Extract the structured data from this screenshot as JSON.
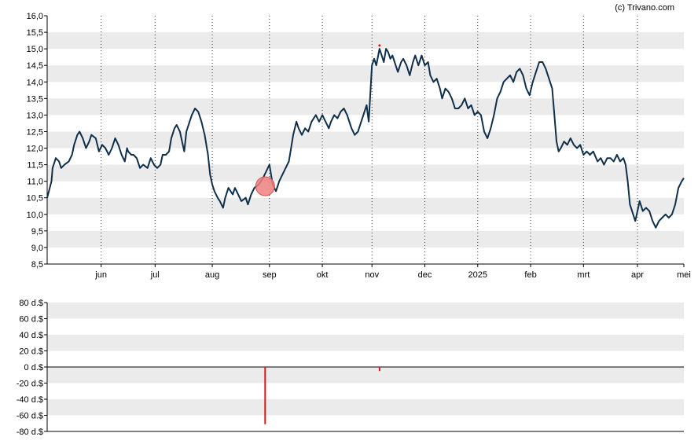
{
  "credit": "(c) Trivano.com",
  "colors": {
    "line": "#0f2f4a",
    "band": "#ebebeb",
    "bar": "#e0141e",
    "marker": "#f08080"
  },
  "chart_data": [
    {
      "type": "line",
      "title": "",
      "ylim": [
        8.5,
        16.0
      ],
      "y_ticks": [
        "8,5",
        "9,0",
        "9,5",
        "10,0",
        "10,5",
        "11,0",
        "11,5",
        "12,0",
        "12,5",
        "13,0",
        "13,5",
        "14,0",
        "14,5",
        "15,0",
        "15,5",
        "16,0"
      ],
      "x_ticks": [
        "jun",
        "jul",
        "aug",
        "sep",
        "okt",
        "nov",
        "dec",
        "2025",
        "feb",
        "mrt",
        "apr",
        "mei"
      ],
      "x_range": [
        0,
        59
      ],
      "x_tick_positions": [
        5,
        10,
        15.3,
        20.6,
        25.5,
        30.1,
        35,
        39.9,
        44.8,
        49.7,
        54.7,
        59
      ],
      "grid": "dotted vertical at month ticks, alternating horizontal bands",
      "markers": [
        {
          "x": 20.2,
          "y": 10.85,
          "kind": "highlight-circle"
        },
        {
          "x": 30.8,
          "y": 15.1,
          "kind": "dot"
        }
      ],
      "series": [
        {
          "values": [
            [
              0,
              10.5
            ],
            [
              0.4,
              11.0
            ],
            [
              0.5,
              11.4
            ],
            [
              0.8,
              11.7
            ],
            [
              1.1,
              11.6
            ],
            [
              1.3,
              11.4
            ],
            [
              1.6,
              11.5
            ],
            [
              2.0,
              11.6
            ],
            [
              2.3,
              11.8
            ],
            [
              2.5,
              12.1
            ],
            [
              2.8,
              12.4
            ],
            [
              3.0,
              12.5
            ],
            [
              3.3,
              12.3
            ],
            [
              3.6,
              12.0
            ],
            [
              3.9,
              12.2
            ],
            [
              4.1,
              12.4
            ],
            [
              4.5,
              12.3
            ],
            [
              4.8,
              11.9
            ],
            [
              5.1,
              12.1
            ],
            [
              5.4,
              12.0
            ],
            [
              5.7,
              11.8
            ],
            [
              6.0,
              12.0
            ],
            [
              6.3,
              12.3
            ],
            [
              6.6,
              12.1
            ],
            [
              6.9,
              11.8
            ],
            [
              7.2,
              11.6
            ],
            [
              7.4,
              12.0
            ],
            [
              7.5,
              11.9
            ],
            [
              7.8,
              11.8
            ],
            [
              8.0,
              11.8
            ],
            [
              8.3,
              11.7
            ],
            [
              8.6,
              11.4
            ],
            [
              8.9,
              11.5
            ],
            [
              9.3,
              11.4
            ],
            [
              9.6,
              11.7
            ],
            [
              9.9,
              11.5
            ],
            [
              10.2,
              11.4
            ],
            [
              10.5,
              11.5
            ],
            [
              10.7,
              11.8
            ],
            [
              11.0,
              11.8
            ],
            [
              11.3,
              11.9
            ],
            [
              11.5,
              12.3
            ],
            [
              11.8,
              12.6
            ],
            [
              12.0,
              12.7
            ],
            [
              12.3,
              12.5
            ],
            [
              12.5,
              12.2
            ],
            [
              12.7,
              11.9
            ],
            [
              12.9,
              12.5
            ],
            [
              13.2,
              12.8
            ],
            [
              13.4,
              13.0
            ],
            [
              13.7,
              13.2
            ],
            [
              14.0,
              13.1
            ],
            [
              14.3,
              12.8
            ],
            [
              14.6,
              12.4
            ],
            [
              14.9,
              11.8
            ],
            [
              15.1,
              11.2
            ],
            [
              15.3,
              10.9
            ],
            [
              15.5,
              10.7
            ],
            [
              15.8,
              10.5
            ],
            [
              16.0,
              10.4
            ],
            [
              16.3,
              10.2
            ],
            [
              16.5,
              10.5
            ],
            [
              16.8,
              10.8
            ],
            [
              17.2,
              10.6
            ],
            [
              17.4,
              10.8
            ],
            [
              17.7,
              10.6
            ],
            [
              18.0,
              10.4
            ],
            [
              18.4,
              10.5
            ],
            [
              18.6,
              10.3
            ],
            [
              18.9,
              10.6
            ],
            [
              19.2,
              10.8
            ],
            [
              19.6,
              10.9
            ],
            [
              20.0,
              11.1
            ],
            [
              20.3,
              11.3
            ],
            [
              20.6,
              11.5
            ],
            [
              20.9,
              10.9
            ],
            [
              21.2,
              10.7
            ],
            [
              21.5,
              11.0
            ],
            [
              21.8,
              11.2
            ],
            [
              22.1,
              11.4
            ],
            [
              22.4,
              11.6
            ],
            [
              22.6,
              12.0
            ],
            [
              22.8,
              12.4
            ],
            [
              23.1,
              12.8
            ],
            [
              23.3,
              12.6
            ],
            [
              23.6,
              12.4
            ],
            [
              23.9,
              12.6
            ],
            [
              24.2,
              12.5
            ],
            [
              24.5,
              12.8
            ],
            [
              24.9,
              13.0
            ],
            [
              25.2,
              12.8
            ],
            [
              25.5,
              13.0
            ],
            [
              25.8,
              12.8
            ],
            [
              26.1,
              12.6
            ],
            [
              26.3,
              12.8
            ],
            [
              26.6,
              13.0
            ],
            [
              26.9,
              12.9
            ],
            [
              27.2,
              13.1
            ],
            [
              27.5,
              13.2
            ],
            [
              27.8,
              13.0
            ],
            [
              28.0,
              12.8
            ],
            [
              28.2,
              12.6
            ],
            [
              28.5,
              12.4
            ],
            [
              28.8,
              12.5
            ],
            [
              29.1,
              12.8
            ],
            [
              29.3,
              13.0
            ],
            [
              29.6,
              13.3
            ],
            [
              29.8,
              12.8
            ],
            [
              30.1,
              14.5
            ],
            [
              30.3,
              14.7
            ],
            [
              30.5,
              14.5
            ],
            [
              30.8,
              15.0
            ],
            [
              31.0,
              14.8
            ],
            [
              31.2,
              14.6
            ],
            [
              31.4,
              15.0
            ],
            [
              31.6,
              14.9
            ],
            [
              31.8,
              14.7
            ],
            [
              32.0,
              14.8
            ],
            [
              32.3,
              14.5
            ],
            [
              32.5,
              14.3
            ],
            [
              32.8,
              14.6
            ],
            [
              33.0,
              14.7
            ],
            [
              33.3,
              14.5
            ],
            [
              33.6,
              14.2
            ],
            [
              33.9,
              14.6
            ],
            [
              34.1,
              14.8
            ],
            [
              34.4,
              14.5
            ],
            [
              34.7,
              14.8
            ],
            [
              35.0,
              14.5
            ],
            [
              35.3,
              14.6
            ],
            [
              35.5,
              14.2
            ],
            [
              35.8,
              14.0
            ],
            [
              36.1,
              14.1
            ],
            [
              36.4,
              13.8
            ],
            [
              36.6,
              13.5
            ],
            [
              36.9,
              13.8
            ],
            [
              37.2,
              13.7
            ],
            [
              37.5,
              13.5
            ],
            [
              37.8,
              13.2
            ],
            [
              38.1,
              13.2
            ],
            [
              38.4,
              13.3
            ],
            [
              38.7,
              13.5
            ],
            [
              39.0,
              13.2
            ],
            [
              39.3,
              13.3
            ],
            [
              39.6,
              13.0
            ],
            [
              39.9,
              13.1
            ],
            [
              40.2,
              13.0
            ],
            [
              40.5,
              12.5
            ],
            [
              40.8,
              12.3
            ],
            [
              41.1,
              12.6
            ],
            [
              41.4,
              13.0
            ],
            [
              41.7,
              13.5
            ],
            [
              42.0,
              13.7
            ],
            [
              42.3,
              14.0
            ],
            [
              42.6,
              14.1
            ],
            [
              42.9,
              14.2
            ],
            [
              43.2,
              14.0
            ],
            [
              43.5,
              14.3
            ],
            [
              43.8,
              14.4
            ],
            [
              44.1,
              14.2
            ],
            [
              44.4,
              13.8
            ],
            [
              44.7,
              13.6
            ],
            [
              45.0,
              14.0
            ],
            [
              45.3,
              14.3
            ],
            [
              45.6,
              14.6
            ],
            [
              45.9,
              14.6
            ],
            [
              46.2,
              14.4
            ],
            [
              46.5,
              14.1
            ],
            [
              46.8,
              13.8
            ],
            [
              47.0,
              13.0
            ],
            [
              47.2,
              12.2
            ],
            [
              47.4,
              11.9
            ],
            [
              47.6,
              12.0
            ],
            [
              47.9,
              12.2
            ],
            [
              48.2,
              12.1
            ],
            [
              48.5,
              12.3
            ],
            [
              48.8,
              12.1
            ],
            [
              49.1,
              12.0
            ],
            [
              49.4,
              12.1
            ],
            [
              49.7,
              11.8
            ],
            [
              50.0,
              11.9
            ],
            [
              50.3,
              11.8
            ],
            [
              50.6,
              11.9
            ],
            [
              51.0,
              11.6
            ],
            [
              51.3,
              11.7
            ],
            [
              51.6,
              11.5
            ],
            [
              51.9,
              11.7
            ],
            [
              52.2,
              11.7
            ],
            [
              52.5,
              11.6
            ],
            [
              52.8,
              11.8
            ],
            [
              53.1,
              11.6
            ],
            [
              53.4,
              11.7
            ],
            [
              53.6,
              11.5
            ],
            [
              53.8,
              11.0
            ],
            [
              54.0,
              10.3
            ],
            [
              54.3,
              10.0
            ],
            [
              54.5,
              9.8
            ],
            [
              54.7,
              10.1
            ],
            [
              54.9,
              10.4
            ],
            [
              55.2,
              10.1
            ],
            [
              55.5,
              10.2
            ],
            [
              55.8,
              10.1
            ],
            [
              56.1,
              9.8
            ],
            [
              56.4,
              9.6
            ],
            [
              56.7,
              9.8
            ],
            [
              57.0,
              9.9
            ],
            [
              57.3,
              10.0
            ],
            [
              57.6,
              9.9
            ],
            [
              57.9,
              10.0
            ],
            [
              58.2,
              10.3
            ],
            [
              58.5,
              10.8
            ],
            [
              58.8,
              11.0
            ],
            [
              59.0,
              11.1
            ]
          ]
        }
      ]
    },
    {
      "type": "bar",
      "ylim": [
        -80,
        80
      ],
      "y_ticks": [
        "80 d.$",
        "60 d.$",
        "40 d.$",
        "20 d.$",
        "0 d.$",
        "-20 d.$",
        "-40 d.$",
        "-60 d.$",
        "-80 d.$"
      ],
      "bars": [
        {
          "x": 20.2,
          "value": -71
        },
        {
          "x": 30.8,
          "value": -5
        }
      ]
    }
  ]
}
